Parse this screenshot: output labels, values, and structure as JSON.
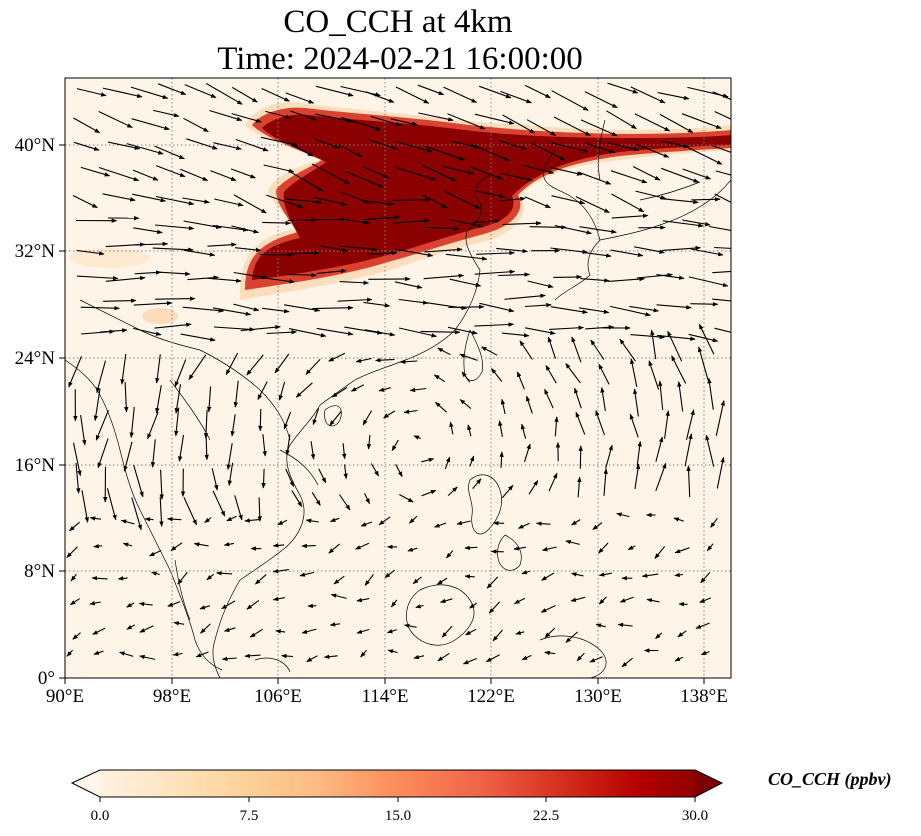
{
  "title": {
    "line1": "CO_CCH at 4km",
    "line2": "Time: 2024-02-21 16:00:00"
  },
  "map": {
    "lon_range": [
      90,
      140
    ],
    "lat_range": [
      0,
      45
    ],
    "lon_ticks": [
      "90°E",
      "98°E",
      "106°E",
      "114°E",
      "122°E",
      "130°E",
      "138°E"
    ],
    "lat_ticks": [
      "0°",
      "8°N",
      "16°N",
      "24°N",
      "32°N",
      "40°N"
    ],
    "gridlines": true,
    "field": "CO_CCH",
    "vectors": "wind"
  },
  "colorbar": {
    "label": "CO_CCH (ppbv)",
    "colormap": "OrRd",
    "range": [
      0.0,
      30.0
    ],
    "extend": "both",
    "ticks": [
      "0.0",
      "7.5",
      "15.0",
      "22.5",
      "30.0"
    ]
  },
  "colors": {
    "low": "#fff7ec",
    "mid": "#fdbb84",
    "high": "#7f0000"
  }
}
